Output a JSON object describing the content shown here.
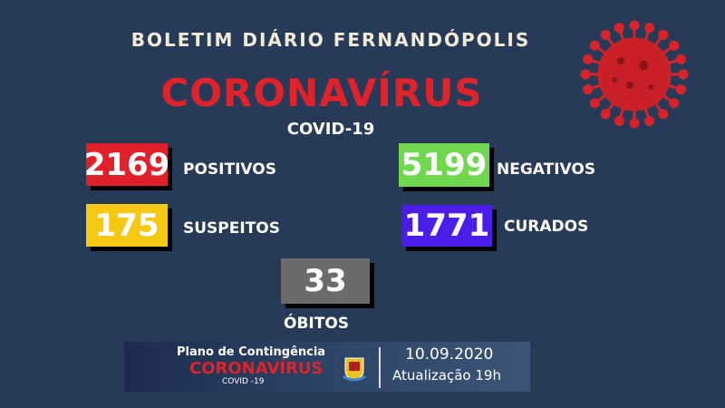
{
  "header": {
    "title": "BOLETIM DIÁRIO FERNANDÓPOLIS",
    "headline": "CORONAVÍRUS",
    "subtitle": "COVID-19"
  },
  "stats": {
    "positivos": {
      "value": "2169",
      "label": "POSITIVOS",
      "color": "#e0202a"
    },
    "negativos": {
      "value": "5199",
      "label": "NEGATIVOS",
      "color": "#6fd84e"
    },
    "suspeitos": {
      "value": "175",
      "label": "SUSPEITOS",
      "color": "#f5c813"
    },
    "curados": {
      "value": "1771",
      "label": "CURADOS",
      "color": "#4a1ee8"
    },
    "obitos": {
      "value": "33",
      "label": "ÓBITOS",
      "color": "#6b6b6b"
    }
  },
  "banner": {
    "plan": "Plano de Contingência",
    "headline": "CORONAVÍRUS",
    "sub": "COVID -19",
    "date": "10.09.2020",
    "update": "Atualização 19h"
  },
  "icons": {
    "virus": "coronavirus-icon",
    "crest": "city-crest-icon"
  }
}
